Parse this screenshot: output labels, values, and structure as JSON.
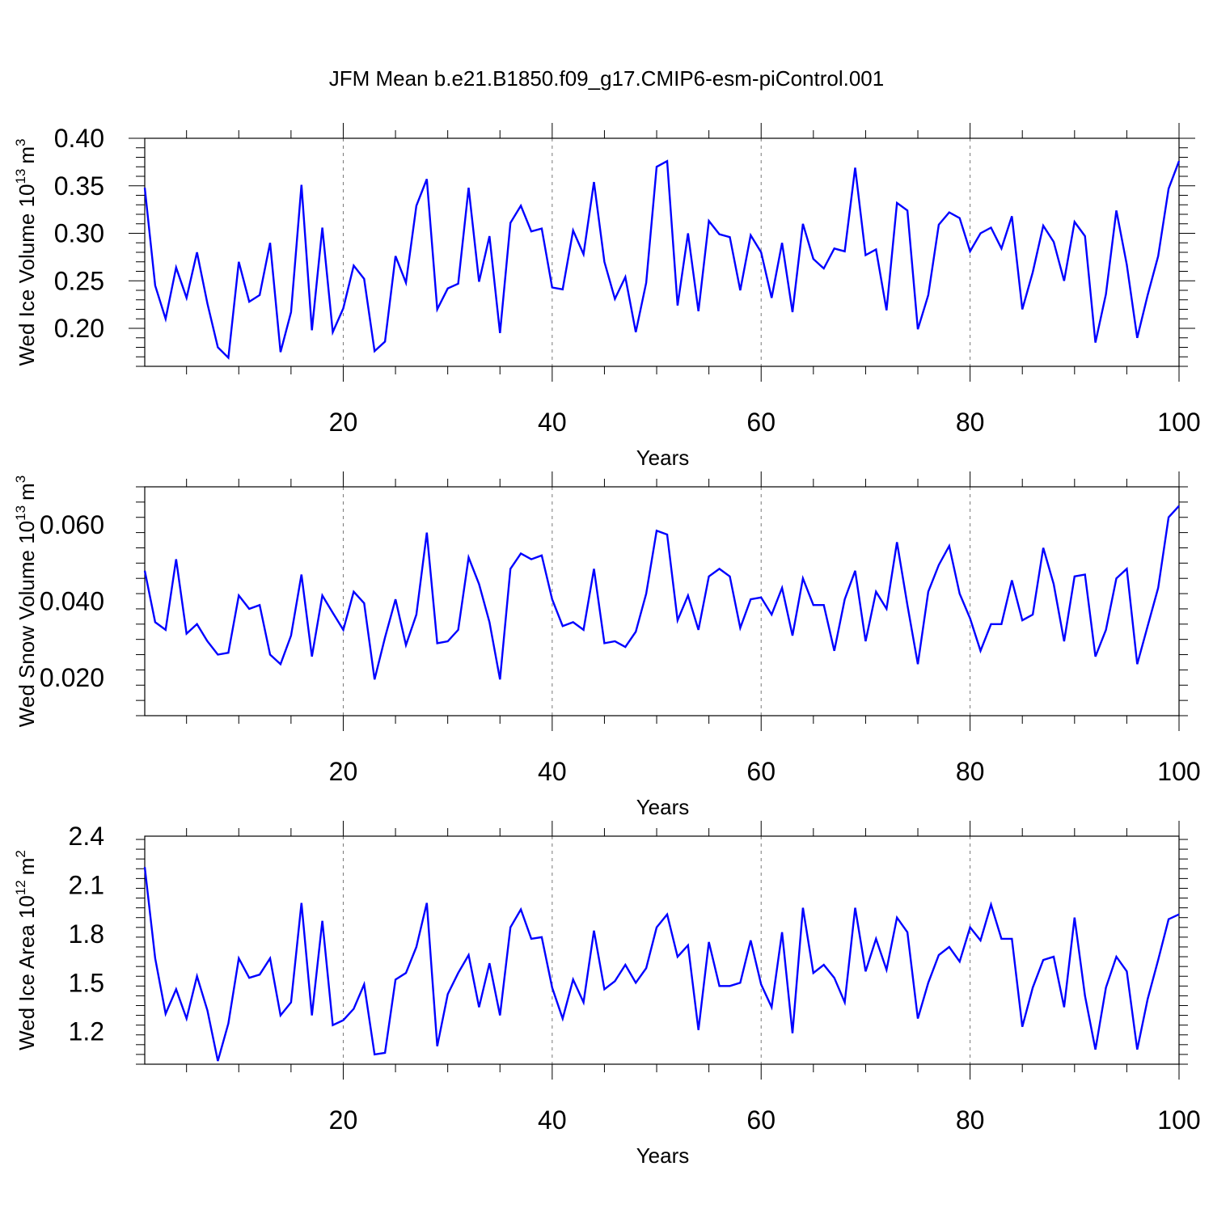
{
  "title": "JFM Mean b.e21.B1850.f09_g17.CMIP6-esm-piControl.001",
  "line_color": "#0000ff",
  "chart_data": [
    {
      "type": "line",
      "xlabel": "Years",
      "ylabel": "Wed Ice Volume 10",
      "ylabel_exp": "13",
      "ylabel_unit": "m",
      "ylabel_unit_exp": "3",
      "xlim": [
        1,
        100
      ],
      "ylim": [
        0.16,
        0.4
      ],
      "x_ticks": [
        20,
        40,
        60,
        80,
        100
      ],
      "x_tick_labels": [
        "20",
        "40",
        "60",
        "80",
        "100"
      ],
      "y_ticks": [
        0.2,
        0.25,
        0.3,
        0.35,
        0.4
      ],
      "y_tick_labels": [
        "0.20",
        "0.25",
        "0.30",
        "0.35",
        "0.40"
      ],
      "x_start": 1,
      "values": [
        0.348,
        0.245,
        0.21,
        0.264,
        0.232,
        0.28,
        0.226,
        0.18,
        0.169,
        0.27,
        0.228,
        0.235,
        0.29,
        0.175,
        0.217,
        0.351,
        0.198,
        0.306,
        0.196,
        0.221,
        0.266,
        0.252,
        0.176,
        0.186,
        0.276,
        0.248,
        0.329,
        0.357,
        0.22,
        0.242,
        0.247,
        0.348,
        0.249,
        0.297,
        0.195,
        0.311,
        0.329,
        0.302,
        0.305,
        0.243,
        0.241,
        0.303,
        0.278,
        0.354,
        0.27,
        0.231,
        0.254,
        0.196,
        0.248,
        0.37,
        0.376,
        0.224,
        0.3,
        0.218,
        0.313,
        0.299,
        0.296,
        0.24,
        0.298,
        0.28,
        0.232,
        0.29,
        0.217,
        0.31,
        0.273,
        0.263,
        0.284,
        0.281,
        0.369,
        0.277,
        0.283,
        0.219,
        0.332,
        0.324,
        0.199,
        0.235,
        0.309,
        0.322,
        0.316,
        0.281,
        0.3,
        0.306,
        0.284,
        0.318,
        0.22,
        0.259,
        0.308,
        0.291,
        0.25,
        0.312,
        0.297,
        0.185,
        0.236,
        0.324,
        0.267,
        0.19,
        0.235,
        0.276,
        0.347,
        0.376
      ]
    },
    {
      "type": "line",
      "xlabel": "Years",
      "ylabel": "Wed Snow Volume 10",
      "ylabel_exp": "13",
      "ylabel_unit": "m",
      "ylabel_unit_exp": "3",
      "xlim": [
        1,
        100
      ],
      "ylim": [
        0.01,
        0.07
      ],
      "x_ticks": [
        20,
        40,
        60,
        80,
        100
      ],
      "x_tick_labels": [
        "20",
        "40",
        "60",
        "80",
        "100"
      ],
      "y_ticks": [
        0.02,
        0.04,
        0.06
      ],
      "y_tick_labels": [
        "0.020",
        "0.040",
        "0.060"
      ],
      "x_start": 1,
      "values": [
        0.048,
        0.0345,
        0.0325,
        0.051,
        0.0315,
        0.034,
        0.0295,
        0.026,
        0.0265,
        0.0415,
        0.038,
        0.039,
        0.026,
        0.0235,
        0.031,
        0.047,
        0.0255,
        0.0415,
        0.037,
        0.0325,
        0.0425,
        0.0395,
        0.0195,
        0.0305,
        0.0405,
        0.0285,
        0.0365,
        0.058,
        0.029,
        0.0295,
        0.0325,
        0.0515,
        0.0445,
        0.0345,
        0.0195,
        0.0485,
        0.0525,
        0.051,
        0.052,
        0.0405,
        0.0335,
        0.0345,
        0.0325,
        0.0485,
        0.029,
        0.0295,
        0.028,
        0.032,
        0.042,
        0.0585,
        0.0575,
        0.035,
        0.0415,
        0.0325,
        0.0465,
        0.0485,
        0.0465,
        0.033,
        0.0405,
        0.041,
        0.0365,
        0.0435,
        0.031,
        0.046,
        0.039,
        0.039,
        0.027,
        0.0405,
        0.048,
        0.0295,
        0.0425,
        0.038,
        0.0555,
        0.039,
        0.0235,
        0.0425,
        0.0495,
        0.0545,
        0.042,
        0.0355,
        0.027,
        0.034,
        0.034,
        0.0455,
        0.035,
        0.0365,
        0.054,
        0.0445,
        0.0295,
        0.0465,
        0.047,
        0.0255,
        0.0325,
        0.046,
        0.0485,
        0.0235,
        0.0335,
        0.0435,
        0.062,
        0.065
      ]
    },
    {
      "type": "line",
      "xlabel": "Years",
      "ylabel": "Wed Ice Area 10",
      "ylabel_exp": "12",
      "ylabel_unit": "m",
      "ylabel_unit_exp": "2",
      "xlim": [
        1,
        100
      ],
      "ylim": [
        1.0,
        2.4
      ],
      "x_ticks": [
        20,
        40,
        60,
        80,
        100
      ],
      "x_tick_labels": [
        "20",
        "40",
        "60",
        "80",
        "100"
      ],
      "y_ticks": [
        1.2,
        1.5,
        1.8,
        2.1,
        2.4
      ],
      "y_tick_labels": [
        "1.2",
        "1.5",
        "1.8",
        "2.1",
        "2.4"
      ],
      "x_start": 1,
      "values": [
        2.21,
        1.65,
        1.31,
        1.46,
        1.28,
        1.54,
        1.33,
        1.02,
        1.25,
        1.65,
        1.53,
        1.55,
        1.65,
        1.3,
        1.38,
        1.99,
        1.3,
        1.88,
        1.24,
        1.27,
        1.34,
        1.49,
        1.06,
        1.07,
        1.52,
        1.56,
        1.72,
        1.99,
        1.11,
        1.43,
        1.56,
        1.67,
        1.35,
        1.62,
        1.3,
        1.84,
        1.95,
        1.77,
        1.78,
        1.47,
        1.28,
        1.52,
        1.38,
        1.82,
        1.46,
        1.51,
        1.61,
        1.5,
        1.59,
        1.84,
        1.92,
        1.66,
        1.73,
        1.21,
        1.75,
        1.48,
        1.48,
        1.5,
        1.76,
        1.49,
        1.35,
        1.81,
        1.19,
        1.96,
        1.56,
        1.61,
        1.53,
        1.38,
        1.96,
        1.57,
        1.77,
        1.58,
        1.9,
        1.81,
        1.28,
        1.5,
        1.67,
        1.72,
        1.63,
        1.84,
        1.76,
        1.98,
        1.77,
        1.77,
        1.23,
        1.47,
        1.64,
        1.66,
        1.35,
        1.9,
        1.42,
        1.09,
        1.47,
        1.66,
        1.57,
        1.09,
        1.4,
        1.64,
        1.89,
        1.92
      ]
    }
  ]
}
